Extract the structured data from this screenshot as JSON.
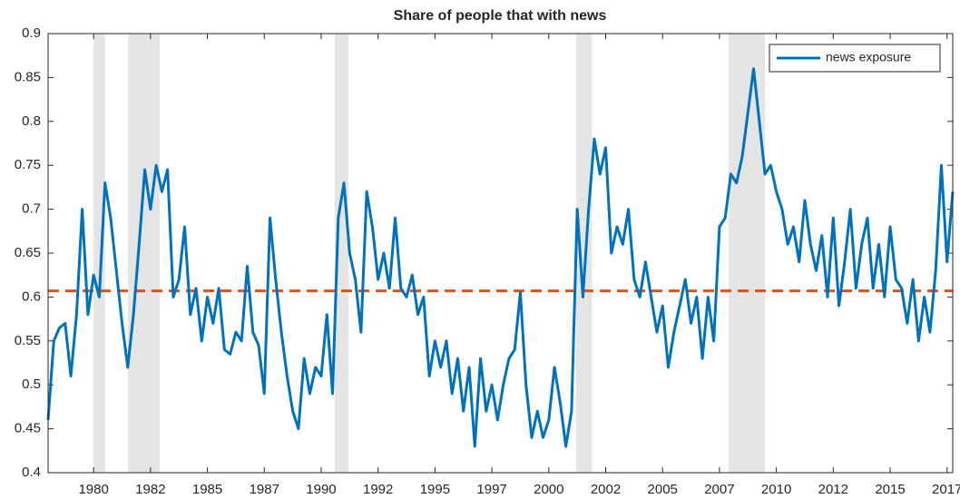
{
  "chart_data": {
    "type": "line",
    "title": "Share of people that with news",
    "x": [
      1978,
      1978.25,
      1978.5,
      1978.75,
      1979,
      1979.25,
      1979.5,
      1979.75,
      1980,
      1980.25,
      1980.5,
      1980.75,
      1981,
      1981.25,
      1981.5,
      1981.75,
      1982,
      1982.25,
      1982.5,
      1982.75,
      1983,
      1983.25,
      1983.5,
      1983.75,
      1984,
      1984.25,
      1984.5,
      1984.75,
      1985,
      1985.25,
      1985.5,
      1985.75,
      1986,
      1986.25,
      1986.5,
      1986.75,
      1987,
      1987.25,
      1987.5,
      1987.75,
      1988,
      1988.25,
      1988.5,
      1988.75,
      1989,
      1989.25,
      1989.5,
      1989.75,
      1990,
      1990.25,
      1990.5,
      1990.75,
      1991,
      1991.25,
      1991.5,
      1991.75,
      1992,
      1992.25,
      1992.5,
      1992.75,
      1993,
      1993.25,
      1993.5,
      1993.75,
      1994,
      1994.25,
      1994.5,
      1994.75,
      1995,
      1995.25,
      1995.5,
      1995.75,
      1996,
      1996.25,
      1996.5,
      1996.75,
      1997,
      1997.25,
      1997.5,
      1997.75,
      1998,
      1998.25,
      1998.5,
      1998.75,
      1999,
      1999.25,
      1999.5,
      1999.75,
      2000,
      2000.25,
      2000.5,
      2000.75,
      2001,
      2001.25,
      2001.5,
      2001.75,
      2002,
      2002.25,
      2002.5,
      2002.75,
      2003,
      2003.25,
      2003.5,
      2003.75,
      2004,
      2004.25,
      2004.5,
      2004.75,
      2005,
      2005.25,
      2005.5,
      2005.75,
      2006,
      2006.25,
      2006.5,
      2006.75,
      2007,
      2007.25,
      2007.5,
      2007.75,
      2008,
      2008.25,
      2008.5,
      2008.75,
      2009,
      2009.25,
      2009.5,
      2009.75,
      2010,
      2010.25,
      2010.5,
      2010.75,
      2011,
      2011.25,
      2011.5,
      2011.75,
      2012,
      2012.25,
      2012.5,
      2012.75,
      2013,
      2013.25,
      2013.5,
      2013.75,
      2014,
      2014.25,
      2014.5,
      2014.75,
      2015,
      2015.25,
      2015.5,
      2015.75,
      2016,
      2016.25,
      2016.5,
      2016.75,
      2017,
      2017.25,
      2017.5,
      2017.75
    ],
    "series": [
      {
        "name": "news exposure",
        "color": "#0072bd",
        "values": [
          0.46,
          0.55,
          0.565,
          0.57,
          0.51,
          0.58,
          0.7,
          0.58,
          0.625,
          0.6,
          0.73,
          0.69,
          0.63,
          0.57,
          0.52,
          0.58,
          0.66,
          0.745,
          0.7,
          0.75,
          0.72,
          0.745,
          0.6,
          0.62,
          0.68,
          0.58,
          0.61,
          0.55,
          0.6,
          0.57,
          0.61,
          0.54,
          0.535,
          0.56,
          0.55,
          0.635,
          0.56,
          0.545,
          0.49,
          0.69,
          0.62,
          0.56,
          0.51,
          0.47,
          0.45,
          0.53,
          0.49,
          0.52,
          0.51,
          0.58,
          0.49,
          0.69,
          0.73,
          0.65,
          0.62,
          0.56,
          0.72,
          0.68,
          0.62,
          0.65,
          0.61,
          0.69,
          0.61,
          0.6,
          0.625,
          0.58,
          0.6,
          0.51,
          0.55,
          0.52,
          0.55,
          0.49,
          0.53,
          0.47,
          0.52,
          0.43,
          0.53,
          0.47,
          0.5,
          0.46,
          0.5,
          0.53,
          0.54,
          0.605,
          0.5,
          0.44,
          0.47,
          0.44,
          0.46,
          0.52,
          0.48,
          0.43,
          0.47,
          0.7,
          0.6,
          0.7,
          0.78,
          0.74,
          0.77,
          0.65,
          0.68,
          0.66,
          0.7,
          0.62,
          0.6,
          0.64,
          0.6,
          0.56,
          0.59,
          0.52,
          0.56,
          0.59,
          0.62,
          0.57,
          0.6,
          0.53,
          0.6,
          0.55,
          0.68,
          0.69,
          0.74,
          0.73,
          0.76,
          0.81,
          0.86,
          0.8,
          0.74,
          0.75,
          0.72,
          0.7,
          0.66,
          0.68,
          0.64,
          0.71,
          0.66,
          0.63,
          0.67,
          0.6,
          0.69,
          0.59,
          0.64,
          0.7,
          0.61,
          0.66,
          0.69,
          0.61,
          0.66,
          0.6,
          0.68,
          0.62,
          0.61,
          0.57,
          0.62,
          0.55,
          0.6,
          0.56,
          0.63,
          0.75,
          0.64,
          0.72
        ]
      }
    ],
    "reference_value": 0.607,
    "reference_color": "#d95319",
    "shaded_regions": [
      [
        1980.0,
        1980.5
      ],
      [
        1981.5,
        1982.9
      ],
      [
        1990.6,
        1991.2
      ],
      [
        2001.2,
        2001.9
      ],
      [
        2007.9,
        2009.5
      ]
    ],
    "shade_color": "#e5e5e5",
    "xlim": [
      1978,
      2017.75
    ],
    "xticks": [
      1980,
      {
        "value": 1982.5,
        "label": "1982"
      },
      1985,
      {
        "value": 1987.5,
        "label": "1987"
      },
      1990,
      {
        "value": 1992.5,
        "label": "1992"
      },
      1995,
      {
        "value": 1997.5,
        "label": "1997"
      },
      2000,
      {
        "value": 2002.5,
        "label": "2002"
      },
      2005,
      {
        "value": 2007.5,
        "label": "2007"
      },
      2010,
      {
        "value": 2012.5,
        "label": "2012"
      },
      2015,
      {
        "value": 2017.5,
        "label": "2017"
      }
    ],
    "ylim": [
      0.4,
      0.9
    ],
    "yticks": [
      0.4,
      0.45,
      0.5,
      0.55,
      0.6,
      0.65,
      0.7,
      0.75,
      0.8,
      0.85,
      0.9
    ],
    "legend": "northeast"
  }
}
